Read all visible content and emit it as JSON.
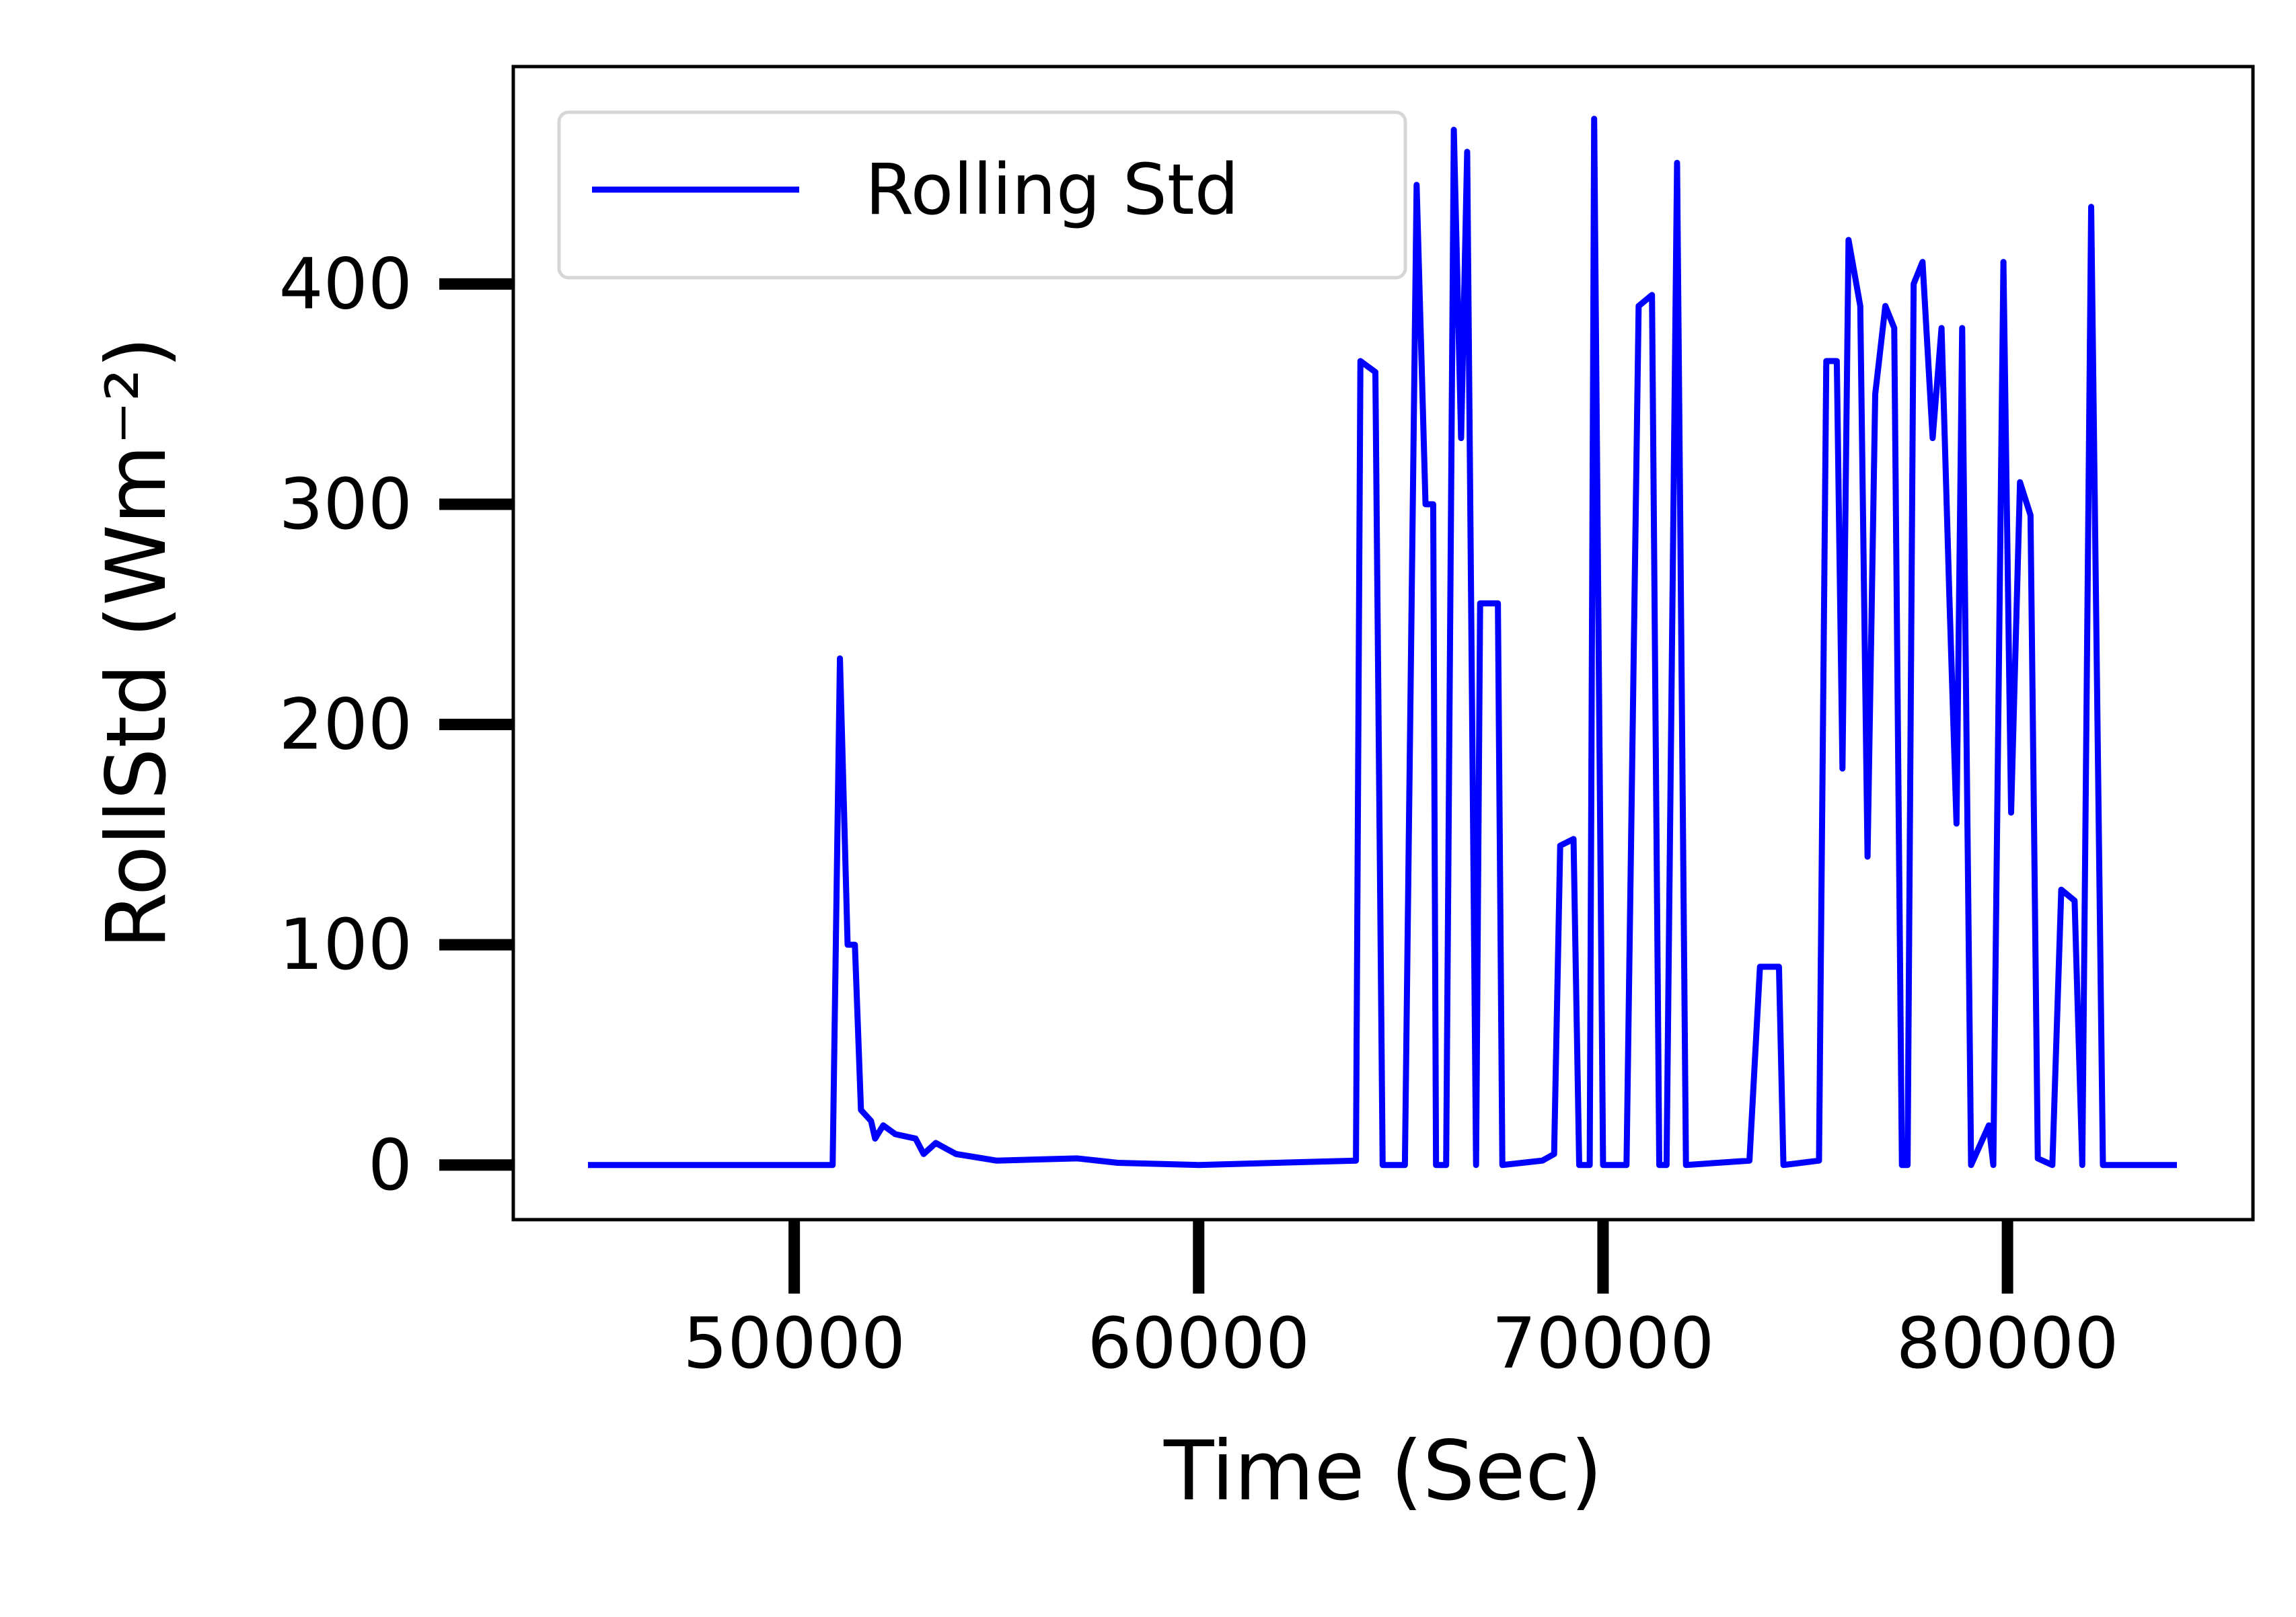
{
  "chart_data": {
    "type": "line",
    "x_label": "Time (Sec)",
    "y_label": "RollStd (Wm⁻²)",
    "xlim": [
      43053,
      86070
    ],
    "ylim": [
      -24.8,
      498.7
    ],
    "xticks": [
      50000,
      60000,
      70000,
      80000
    ],
    "yticks": [
      0,
      100,
      200,
      300,
      400
    ],
    "legend": "upper left",
    "grid": false,
    "series": [
      {
        "name": "Rolling Std",
        "color": "#0000ff",
        "x": [
          44900,
          50950,
          51130,
          51320,
          51500,
          51650,
          51900,
          52000,
          52200,
          52500,
          53000,
          53200,
          53500,
          54000,
          55000,
          57000,
          58000,
          60000,
          63890,
          64000,
          64370,
          64550,
          65100,
          65390,
          65610,
          65800,
          65870,
          66120,
          66310,
          66490,
          66640,
          66860,
          66960,
          67220,
          67400,
          67510,
          68500,
          68790,
          68940,
          69270,
          69410,
          69670,
          69780,
          70000,
          70580,
          70880,
          71210,
          71390,
          71570,
          71830,
          72050,
          73620,
          73880,
          74350,
          74460,
          75340,
          75520,
          75780,
          75920,
          76070,
          76360,
          76540,
          76730,
          76980,
          77200,
          77390,
          77530,
          77680,
          77900,
          78150,
          78370,
          78560,
          78740,
          78880,
          79100,
          79540,
          79650,
          79900,
          80090,
          80310,
          80570,
          80750,
          81110,
          81330,
          81660,
          81850,
          82070,
          82360,
          84190
        ],
        "values": [
          0,
          0,
          230,
          100,
          100,
          25,
          20,
          12,
          18,
          14,
          12,
          5,
          10,
          5,
          2,
          3,
          1,
          0,
          2,
          365,
          360,
          0,
          0,
          445,
          300,
          300,
          0,
          0,
          470,
          330,
          460,
          0,
          255,
          255,
          255,
          0,
          2,
          5,
          145,
          148,
          0,
          0,
          475,
          0,
          0,
          390,
          395,
          0,
          0,
          455,
          0,
          2,
          90,
          90,
          0,
          2,
          365,
          365,
          180,
          420,
          390,
          140,
          350,
          390,
          380,
          0,
          0,
          400,
          410,
          330,
          380,
          260,
          155,
          380,
          0,
          18,
          0,
          410,
          160,
          310,
          295,
          3,
          0,
          125,
          120,
          0,
          435,
          0,
          0
        ]
      }
    ]
  }
}
